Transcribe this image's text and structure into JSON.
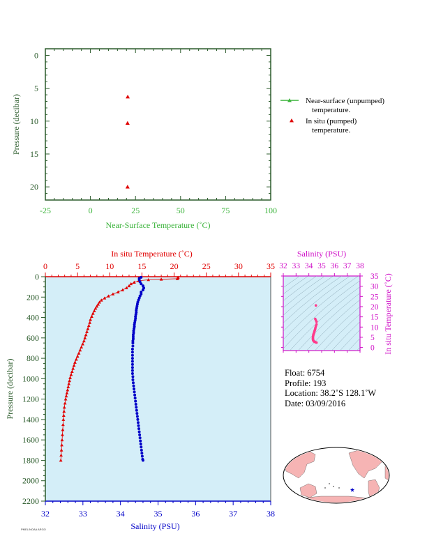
{
  "colors": {
    "green": "#3cb43c",
    "red": "#e00000",
    "blue": "#0000c8",
    "magenta": "#d010c8",
    "pink": "#ff3c8c",
    "dark_green": "#2a5a2a",
    "panel_bg": "#d4eef8",
    "land": "#f6b4b4",
    "ocean_map": "#ffffff"
  },
  "chart_data": [
    {
      "id": "near_surface",
      "type": "scatter",
      "xlabel": "Near-Surface Temperature (˚C)",
      "ylabel": "Pressure (decibar)",
      "xlim": [
        -25,
        100
      ],
      "ylim": [
        22,
        -1
      ],
      "xticks": [
        -25,
        0,
        25,
        50,
        75,
        100
      ],
      "yticks": [
        0,
        5,
        10,
        15,
        20
      ],
      "series": [
        {
          "name": "Near-surface (unpumped) temperature.",
          "marker": "triangle-line",
          "color": "#3cb43c",
          "points": []
        },
        {
          "name": "In situ (pumped) temperature.",
          "marker": "triangle",
          "color": "#e00000",
          "points": [
            [
              20.7,
              6.3
            ],
            [
              20.6,
              10.3
            ],
            [
              20.6,
              20.0
            ]
          ]
        }
      ],
      "legend_position": "right"
    },
    {
      "id": "profile",
      "type": "line",
      "ylabel": "Pressure (decibar)",
      "ylim": [
        2200,
        0
      ],
      "yticks": [
        0,
        200,
        400,
        600,
        800,
        1000,
        1200,
        1400,
        1600,
        1800,
        2000,
        2200
      ],
      "top_axis": {
        "label": "In situ Temperature (˚C)",
        "range": [
          0,
          35
        ],
        "ticks": [
          0,
          5,
          10,
          15,
          20,
          25,
          30,
          35
        ]
      },
      "bottom_axis": {
        "label": "Salinity (PSU)",
        "range": [
          32,
          38
        ],
        "ticks": [
          32,
          33,
          34,
          35,
          36,
          37,
          38
        ]
      },
      "temperature": [
        [
          20.6,
          6
        ],
        [
          20.6,
          10
        ],
        [
          20.5,
          20
        ],
        [
          18.0,
          25
        ],
        [
          16.0,
          30
        ],
        [
          14.5,
          40
        ],
        [
          13.8,
          55
        ],
        [
          13.3,
          70
        ],
        [
          13.0,
          90
        ],
        [
          12.6,
          110
        ],
        [
          12.0,
          130
        ],
        [
          11.3,
          150
        ],
        [
          10.5,
          170
        ],
        [
          9.8,
          190
        ],
        [
          9.2,
          210
        ],
        [
          8.7,
          230
        ],
        [
          8.4,
          250
        ],
        [
          8.2,
          270
        ],
        [
          8.0,
          290
        ],
        [
          7.8,
          310
        ],
        [
          7.6,
          335
        ],
        [
          7.4,
          360
        ],
        [
          7.2,
          390
        ],
        [
          7.0,
          420
        ],
        [
          6.9,
          450
        ],
        [
          6.75,
          480
        ],
        [
          6.6,
          510
        ],
        [
          6.45,
          540
        ],
        [
          6.3,
          570
        ],
        [
          6.15,
          600
        ],
        [
          6.0,
          630
        ],
        [
          5.8,
          660
        ],
        [
          5.6,
          690
        ],
        [
          5.4,
          720
        ],
        [
          5.2,
          750
        ],
        [
          5.0,
          780
        ],
        [
          4.8,
          810
        ],
        [
          4.6,
          840
        ],
        [
          4.45,
          870
        ],
        [
          4.3,
          900
        ],
        [
          4.15,
          930
        ],
        [
          4.0,
          960
        ],
        [
          3.85,
          990
        ],
        [
          3.75,
          1020
        ],
        [
          3.65,
          1050
        ],
        [
          3.55,
          1080
        ],
        [
          3.45,
          1110
        ],
        [
          3.35,
          1140
        ],
        [
          3.25,
          1170
        ],
        [
          3.15,
          1200
        ],
        [
          3.05,
          1240
        ],
        [
          2.95,
          1280
        ],
        [
          2.9,
          1320
        ],
        [
          2.85,
          1360
        ],
        [
          2.8,
          1400
        ],
        [
          2.75,
          1450
        ],
        [
          2.7,
          1500
        ],
        [
          2.65,
          1550
        ],
        [
          2.6,
          1600
        ],
        [
          2.55,
          1650
        ],
        [
          2.5,
          1700
        ],
        [
          2.45,
          1750
        ],
        [
          2.4,
          1800
        ]
      ],
      "salinity": [
        [
          34.55,
          6
        ],
        [
          34.5,
          15
        ],
        [
          34.5,
          30
        ],
        [
          34.52,
          50
        ],
        [
          34.55,
          70
        ],
        [
          34.6,
          90
        ],
        [
          34.62,
          110
        ],
        [
          34.6,
          130
        ],
        [
          34.55,
          150
        ],
        [
          34.55,
          170
        ],
        [
          34.52,
          190
        ],
        [
          34.5,
          210
        ],
        [
          34.48,
          230
        ],
        [
          34.46,
          250
        ],
        [
          34.45,
          270
        ],
        [
          34.44,
          290
        ],
        [
          34.43,
          310
        ],
        [
          34.42,
          330
        ],
        [
          34.42,
          350
        ],
        [
          34.41,
          370
        ],
        [
          34.4,
          390
        ],
        [
          34.4,
          410
        ],
        [
          34.39,
          430
        ],
        [
          34.38,
          450
        ],
        [
          34.37,
          470
        ],
        [
          34.37,
          490
        ],
        [
          34.36,
          510
        ],
        [
          34.35,
          530
        ],
        [
          34.35,
          550
        ],
        [
          34.34,
          570
        ],
        [
          34.34,
          590
        ],
        [
          34.34,
          610
        ],
        [
          34.33,
          630
        ],
        [
          34.33,
          650
        ],
        [
          34.33,
          680
        ],
        [
          34.32,
          710
        ],
        [
          34.32,
          740
        ],
        [
          34.32,
          770
        ],
        [
          34.32,
          800
        ],
        [
          34.32,
          830
        ],
        [
          34.32,
          860
        ],
        [
          34.32,
          890
        ],
        [
          34.32,
          920
        ],
        [
          34.32,
          950
        ],
        [
          34.33,
          980
        ],
        [
          34.33,
          1010
        ],
        [
          34.34,
          1040
        ],
        [
          34.35,
          1070
        ],
        [
          34.36,
          1100
        ],
        [
          34.37,
          1130
        ],
        [
          34.38,
          1160
        ],
        [
          34.39,
          1190
        ],
        [
          34.4,
          1220
        ],
        [
          34.41,
          1250
        ],
        [
          34.42,
          1280
        ],
        [
          34.43,
          1310
        ],
        [
          34.44,
          1340
        ],
        [
          34.45,
          1370
        ],
        [
          34.46,
          1400
        ],
        [
          34.47,
          1430
        ],
        [
          34.48,
          1460
        ],
        [
          34.49,
          1490
        ],
        [
          34.5,
          1520
        ],
        [
          34.51,
          1550
        ],
        [
          34.52,
          1580
        ],
        [
          34.53,
          1610
        ],
        [
          34.54,
          1640
        ],
        [
          34.55,
          1670
        ],
        [
          34.56,
          1700
        ],
        [
          34.57,
          1730
        ],
        [
          34.58,
          1760
        ],
        [
          34.59,
          1790
        ],
        [
          34.6,
          1800
        ]
      ]
    },
    {
      "id": "ts_diagram",
      "type": "scatter",
      "xlabel": "Salinity (PSU)",
      "ylabel": "In situ Temperature (˚C)",
      "xlim": [
        32,
        38
      ],
      "ylim": [
        -1.5,
        35
      ],
      "xticks": [
        32,
        33,
        34,
        35,
        36,
        37,
        38
      ],
      "yticks": [
        0,
        5,
        10,
        15,
        20,
        25,
        30,
        35
      ],
      "points": [
        [
          34.55,
          20.6
        ],
        [
          34.5,
          14.0
        ],
        [
          34.55,
          13.3
        ],
        [
          34.6,
          12.6
        ],
        [
          34.6,
          11.3
        ],
        [
          34.55,
          10.5
        ],
        [
          34.52,
          9.8
        ],
        [
          34.5,
          9.2
        ],
        [
          34.48,
          8.7
        ],
        [
          34.45,
          8.2
        ],
        [
          34.43,
          7.8
        ],
        [
          34.42,
          7.4
        ],
        [
          34.4,
          7.0
        ],
        [
          34.38,
          6.75
        ],
        [
          34.36,
          6.45
        ],
        [
          34.35,
          6.15
        ],
        [
          34.34,
          5.8
        ],
        [
          34.33,
          5.4
        ],
        [
          34.32,
          5.0
        ],
        [
          34.32,
          4.6
        ],
        [
          34.32,
          4.3
        ],
        [
          34.32,
          4.0
        ],
        [
          34.33,
          3.75
        ],
        [
          34.34,
          3.55
        ],
        [
          34.36,
          3.35
        ],
        [
          34.38,
          3.15
        ],
        [
          34.41,
          2.95
        ],
        [
          34.44,
          2.85
        ],
        [
          34.47,
          2.75
        ],
        [
          34.5,
          2.65
        ],
        [
          34.53,
          2.55
        ],
        [
          34.56,
          2.5
        ],
        [
          34.6,
          2.4
        ]
      ]
    }
  ],
  "info": {
    "float": "Float:  6754",
    "profile": "Profile:  193",
    "location": "Location:  38.2˚S  128.1˚W",
    "date": "Date:  03/09/2016"
  },
  "map": {
    "marker": "float-position",
    "lat": -38.2,
    "lon": -128.1
  },
  "footer_tiny": "PMEL/NOAA ARGO"
}
